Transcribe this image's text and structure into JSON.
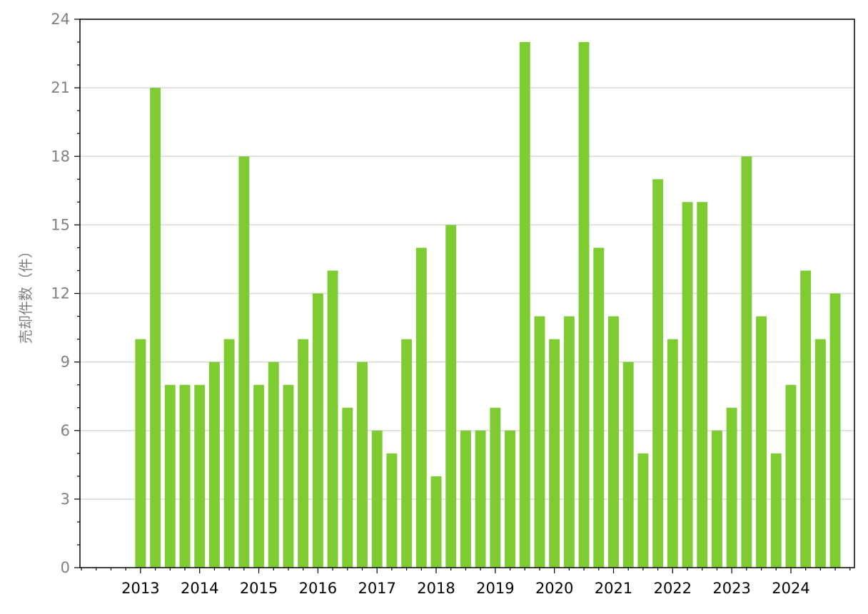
{
  "chart_data": {
    "type": "bar",
    "ylabel": "売却件数（件）",
    "ylim": [
      0,
      24
    ],
    "yticks": [
      0,
      3,
      6,
      9,
      12,
      15,
      18,
      21,
      24
    ],
    "yticks_minor_step": 1,
    "grid": "horizontal",
    "bar_color": "#7ecb32",
    "start_quarter": "2013-Q1",
    "x_tick_labels": [
      "2013",
      "2014",
      "2015",
      "2016",
      "2017",
      "2018",
      "2019",
      "2020",
      "2021",
      "2022",
      "2023",
      "2024"
    ],
    "categories": [
      "2013-Q1",
      "2013-Q2",
      "2013-Q3",
      "2013-Q4",
      "2014-Q1",
      "2014-Q2",
      "2014-Q3",
      "2014-Q4",
      "2015-Q1",
      "2015-Q2",
      "2015-Q3",
      "2015-Q4",
      "2016-Q1",
      "2016-Q2",
      "2016-Q3",
      "2016-Q4",
      "2017-Q1",
      "2017-Q2",
      "2017-Q3",
      "2017-Q4",
      "2018-Q1",
      "2018-Q2",
      "2018-Q3",
      "2018-Q4",
      "2019-Q1",
      "2019-Q2",
      "2019-Q3",
      "2019-Q4",
      "2020-Q1",
      "2020-Q2",
      "2020-Q3",
      "2020-Q4",
      "2021-Q1",
      "2021-Q2",
      "2021-Q3",
      "2021-Q4",
      "2022-Q1",
      "2022-Q2",
      "2022-Q3",
      "2022-Q4",
      "2023-Q1",
      "2023-Q2",
      "2023-Q3",
      "2023-Q4",
      "2024-Q1",
      "2024-Q2",
      "2024-Q3",
      "2024-Q4"
    ],
    "values": [
      10,
      21,
      8,
      8,
      8,
      9,
      10,
      18,
      8,
      9,
      8,
      10,
      12,
      13,
      7,
      9,
      6,
      5,
      10,
      14,
      4,
      15,
      6,
      6,
      7,
      6,
      23,
      11,
      10,
      11,
      23,
      14,
      11,
      9,
      5,
      17,
      10,
      16,
      16,
      6,
      7,
      18,
      11,
      5,
      8,
      13,
      10,
      12
    ]
  }
}
